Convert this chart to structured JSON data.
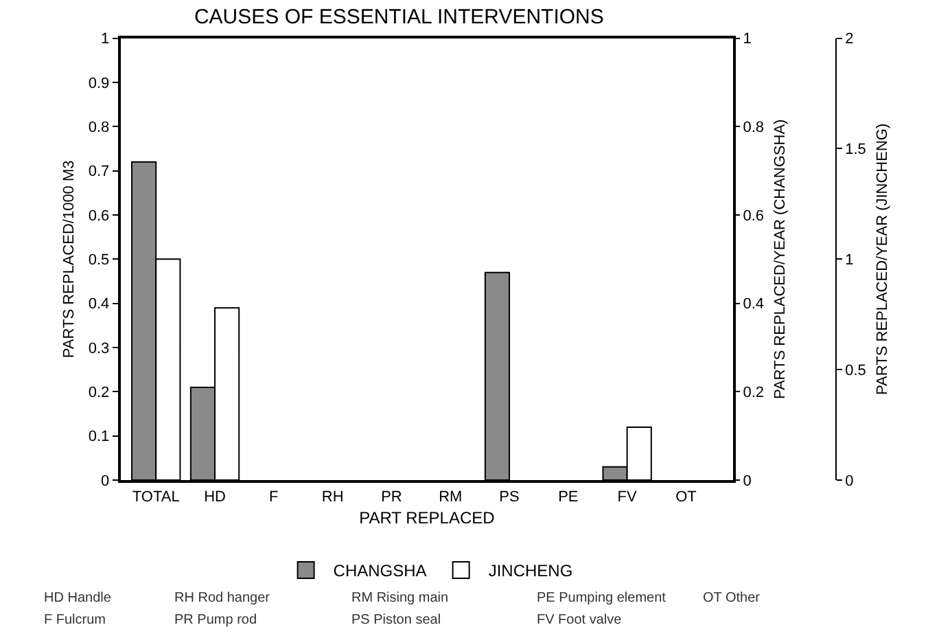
{
  "chart_data": {
    "type": "bar",
    "title": "CAUSES OF ESSENTIAL INTERVENTIONS",
    "xlabel": "PART REPLACED",
    "ylabel": "PARTS REPLACED/1000 M3",
    "y2label": "PARTS REPLACED/YEAR (CHANGSHA)",
    "y3label": "PARTS REPLACED/YEAR (JINCHENG)",
    "categories": [
      "TOTAL",
      "HD",
      "F",
      "RH",
      "PR",
      "RM",
      "PS",
      "PE",
      "FV",
      "OT"
    ],
    "series": [
      {
        "name": "CHANGSHA",
        "color": "#8a8a8a",
        "values": [
          0.72,
          0.21,
          0,
          0,
          0,
          0,
          0.47,
          0,
          0.03,
          0
        ]
      },
      {
        "name": "JINCHENG",
        "color": "#ffffff",
        "values": [
          0.5,
          0.39,
          0,
          0,
          0,
          0,
          0,
          0,
          0.12,
          0
        ]
      }
    ],
    "ylim": [
      0,
      1
    ],
    "yticks": [
      0,
      0.1,
      0.2,
      0.3,
      0.4,
      0.5,
      0.6,
      0.7,
      0.8,
      0.9,
      1
    ],
    "y2lim": [
      0,
      1
    ],
    "y2ticks": [
      0,
      0.2,
      0.4,
      0.6,
      0.8,
      1
    ],
    "y3lim": [
      0,
      2
    ],
    "y3ticks": [
      0,
      0.5,
      1,
      1.5,
      2
    ],
    "legend": "bottom",
    "grid": false,
    "annotations": [
      "HD Handle",
      "F Fulcrum",
      "RH Rod hanger",
      "PR Pump rod",
      "RM Rising main",
      "PS Piston seal",
      "PE Pumping element",
      "FV Foot valve",
      "OT Other"
    ]
  }
}
